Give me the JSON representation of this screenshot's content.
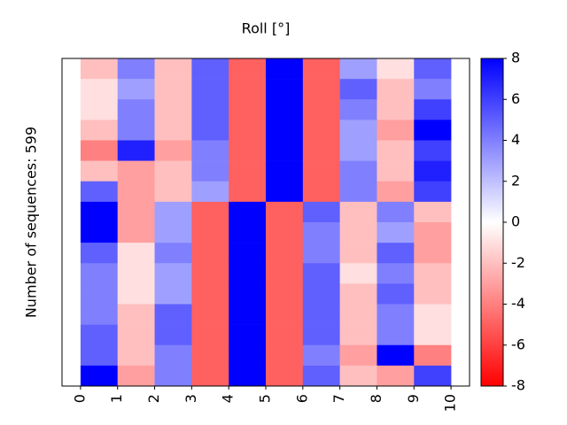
{
  "chart_data": {
    "type": "heatmap",
    "title": "Roll [°]",
    "ylabel": "Number of sequences: 599",
    "xlim": [
      -0.5,
      10.5
    ],
    "xticks": [
      0,
      1,
      2,
      3,
      4,
      5,
      6,
      7,
      8,
      9,
      10
    ],
    "cmap": [
      "#ff0000",
      "#ffffff",
      "#0000ff"
    ],
    "clim": [
      -8,
      8
    ],
    "cticks": [
      -8,
      -6,
      -4,
      -2,
      0,
      2,
      4,
      6,
      8
    ],
    "z": [
      [
        -2,
        4,
        -2,
        5,
        -5,
        8,
        -5,
        3,
        -1,
        5
      ],
      [
        -1,
        3,
        -2,
        5,
        -5,
        8,
        -5,
        5,
        -2,
        4
      ],
      [
        -1,
        4,
        -2,
        5,
        -5,
        8,
        -5,
        4,
        -2,
        6
      ],
      [
        -2,
        4,
        -2,
        5,
        -5,
        8,
        -5,
        3,
        -3,
        8
      ],
      [
        -4,
        7,
        -3,
        4,
        -5,
        8,
        -5,
        3,
        -2,
        6
      ],
      [
        -2,
        -3,
        -2,
        4,
        -5,
        8,
        -5,
        4,
        -2,
        7
      ],
      [
        5,
        -3,
        -2,
        3,
        -5,
        8,
        -5,
        4,
        -3,
        6
      ],
      [
        8,
        -3,
        3,
        -5,
        8,
        -5,
        5,
        -2,
        4,
        -2
      ],
      [
        8,
        -3,
        3,
        -5,
        8,
        -5,
        4,
        -2,
        3,
        -3
      ],
      [
        5,
        -1,
        4,
        -5,
        8,
        -5,
        4,
        -2,
        5,
        -3
      ],
      [
        4,
        -1,
        3,
        -5,
        8,
        -5,
        5,
        -1,
        4,
        -2
      ],
      [
        4,
        -1,
        3,
        -5,
        8,
        -5,
        5,
        -2,
        5,
        -2
      ],
      [
        4,
        -2,
        5,
        -5,
        8,
        -5,
        5,
        -2,
        4,
        -1
      ],
      [
        5,
        -2,
        5,
        -5,
        8,
        -5,
        5,
        -2,
        4,
        -1
      ],
      [
        5,
        -2,
        4,
        -5,
        8,
        -5,
        4,
        -3,
        8,
        -4
      ],
      [
        8,
        -3,
        4,
        -5,
        8,
        -5,
        5,
        -2,
        -3,
        6
      ]
    ]
  }
}
